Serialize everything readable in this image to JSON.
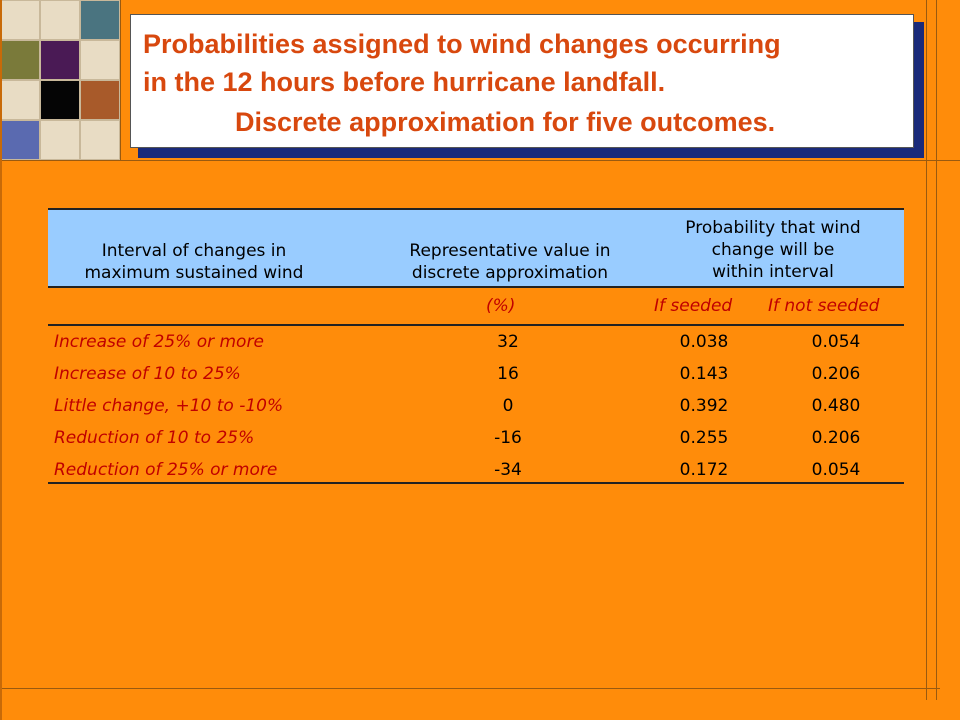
{
  "title": {
    "line1": "Probabilities assigned to wind changes occurring",
    "line2": "in the 12 hours before hurricane landfall.",
    "line3": "Discrete approximation for five outcomes."
  },
  "table": {
    "headers": {
      "col1": [
        "Interval of changes in",
        "maximum sustained wind"
      ],
      "col2": [
        "Representative value in",
        "discrete approximation"
      ],
      "col3": [
        "Probability that wind",
        "change will be",
        "within interval"
      ]
    },
    "subheaders": {
      "unit": "(%)",
      "seeded": "If seeded",
      "not_seeded": "If not seeded"
    },
    "rows": [
      {
        "label": "Increase of 25% or more",
        "value": "32",
        "seeded": "0.038",
        "not_seeded": "0.054"
      },
      {
        "label": "Increase of 10 to 25%",
        "value": "16",
        "seeded": "0.143",
        "not_seeded": "0.206"
      },
      {
        "label": "Little change, +10 to -10%",
        "value": "0",
        "seeded": "0.392",
        "not_seeded": "0.480"
      },
      {
        "label": "Reduction of 10 to 25%",
        "value": "-16",
        "seeded": "0.255",
        "not_seeded": "0.206"
      },
      {
        "label": "Reduction of 25% or more",
        "value": "-34",
        "seeded": "0.172",
        "not_seeded": "0.054"
      }
    ]
  },
  "colors": {
    "background": "#FF8C0A",
    "title_text": "#D8480E",
    "header_fill": "#99CCFF",
    "label_text": "#C00000"
  }
}
